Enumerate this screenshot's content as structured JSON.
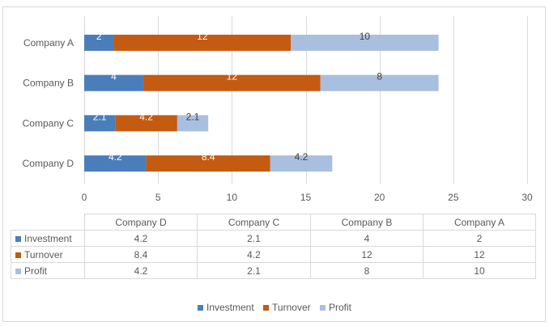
{
  "colors": {
    "investment": "#4a7ebb",
    "turnover": "#c55a11",
    "profit": "#a9bfe0",
    "grid": "#d9d9d9",
    "text": "#595959"
  },
  "chart_data": {
    "type": "bar",
    "orientation": "horizontal",
    "stacked": true,
    "categories": [
      "Company A",
      "Company B",
      "Company C",
      "Company D"
    ],
    "series": [
      {
        "name": "Investment",
        "values": [
          2,
          4,
          2.1,
          4.2
        ]
      },
      {
        "name": "Turnover",
        "values": [
          12,
          12,
          4.2,
          8.4
        ]
      },
      {
        "name": "Profit",
        "values": [
          10,
          8,
          2.1,
          4.2
        ]
      }
    ],
    "xlim": [
      0,
      30
    ],
    "xticks": [
      0,
      5,
      10,
      15,
      20,
      25,
      30
    ],
    "grid": "vertical",
    "legend": "bottom",
    "data_table": true,
    "title": "",
    "xlabel": "",
    "ylabel": ""
  },
  "table": {
    "columns": [
      "Company D",
      "Company C",
      "Company B",
      "Company A"
    ],
    "rows": [
      {
        "label": "Investment",
        "values": [
          "4.2",
          "2.1",
          "4",
          "2"
        ]
      },
      {
        "label": "Turnover",
        "values": [
          "8.4",
          "4.2",
          "12",
          "12"
        ]
      },
      {
        "label": "Profit",
        "values": [
          "4.2",
          "2.1",
          "8",
          "10"
        ]
      }
    ]
  },
  "legend": {
    "items": [
      {
        "label": "Investment"
      },
      {
        "label": "Turnover"
      },
      {
        "label": "Profit"
      }
    ]
  }
}
